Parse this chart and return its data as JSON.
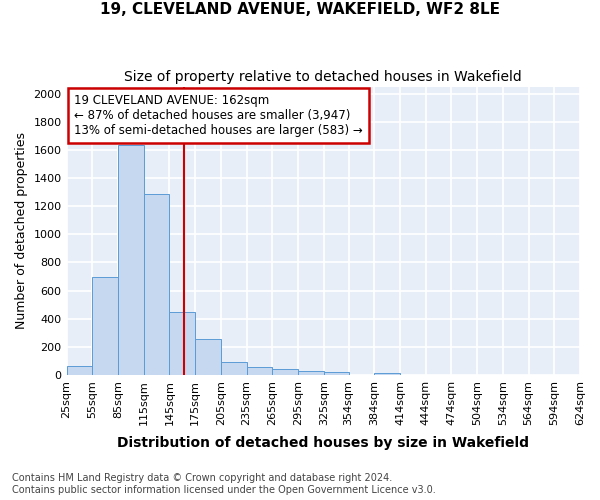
{
  "title_line1": "19, CLEVELAND AVENUE, WAKEFIELD, WF2 8LE",
  "title_line2": "Size of property relative to detached houses in Wakefield",
  "xlabel": "Distribution of detached houses by size in Wakefield",
  "ylabel": "Number of detached properties",
  "footnote1": "Contains HM Land Registry data © Crown copyright and database right 2024.",
  "footnote2": "Contains public sector information licensed under the Open Government Licence v3.0.",
  "annotation_line1": "19 CLEVELAND AVENUE: 162sqm",
  "annotation_line2": "← 87% of detached houses are smaller (3,947)",
  "annotation_line3": "13% of semi-detached houses are larger (583) →",
  "bar_edges": [
    25,
    55,
    85,
    115,
    145,
    175,
    205,
    235,
    265,
    295,
    325,
    354,
    384,
    414,
    444,
    474,
    504,
    534,
    564,
    594,
    624
  ],
  "bar_values": [
    65,
    695,
    1635,
    1285,
    445,
    255,
    90,
    55,
    40,
    30,
    20,
    0,
    15,
    0,
    0,
    0,
    0,
    0,
    0,
    0
  ],
  "bar_color": "#c5d8f0",
  "bar_edge_color": "#5b9bd5",
  "vline_x": 162,
  "vline_color": "#cc0000",
  "annotation_box_edgecolor": "#cc0000",
  "ylim": [
    0,
    2050
  ],
  "yticks": [
    0,
    200,
    400,
    600,
    800,
    1000,
    1200,
    1400,
    1600,
    1800,
    2000
  ],
  "background_color": "#e8eef8",
  "grid_color": "#ffffff",
  "title_fontsize": 11,
  "subtitle_fontsize": 10,
  "ylabel_fontsize": 9,
  "xlabel_fontsize": 10,
  "tick_fontsize": 8,
  "annotation_fontsize": 8.5,
  "footnote_fontsize": 7
}
